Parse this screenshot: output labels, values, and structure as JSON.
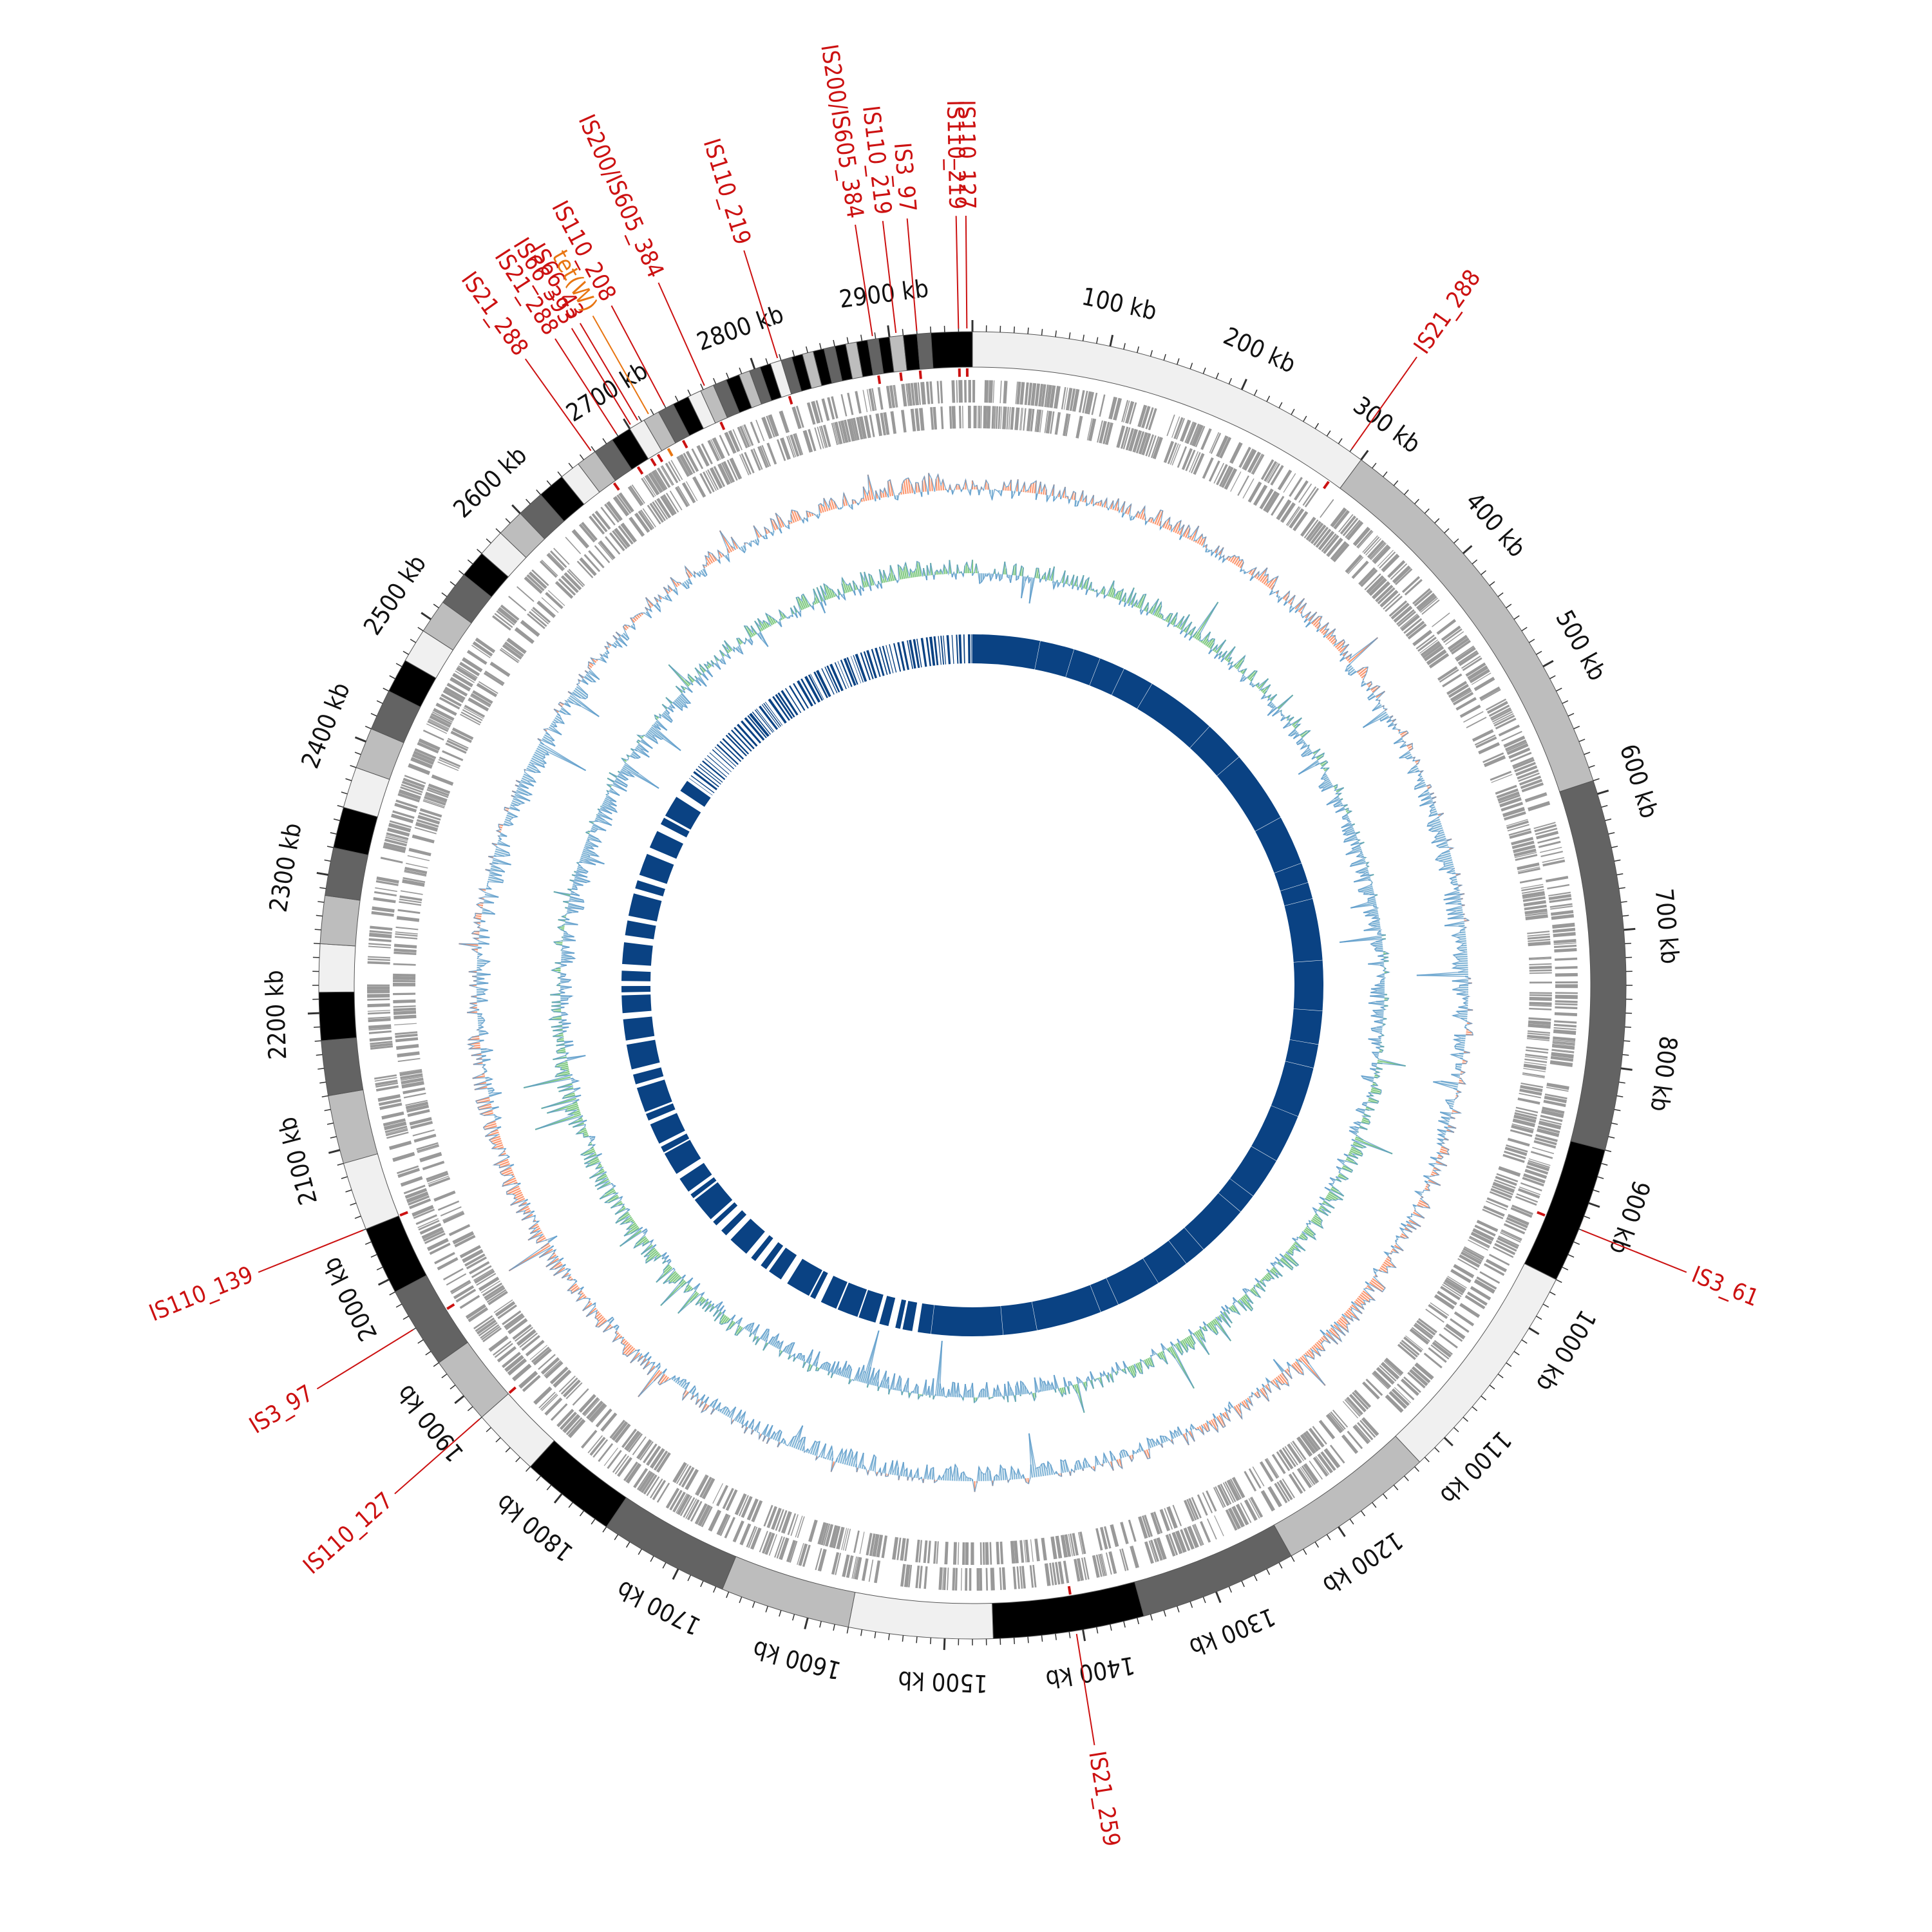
{
  "genome": {
    "length_kb": 2960,
    "tick_step_kb": 100,
    "tick_labels": [
      "100 kb",
      "200 kb",
      "300 kb",
      "400 kb",
      "500 kb",
      "600 kb",
      "700 kb",
      "800 kb",
      "900 kb",
      "1000 kb",
      "1100 kb",
      "1200 kb",
      "1300 kb",
      "1400 kb",
      "1500 kb",
      "1600 kb",
      "1700 kb",
      "1800 kb",
      "1900 kb",
      "2000 kb",
      "2100 kb",
      "2200 kb",
      "2300 kb",
      "2400 kb",
      "2500 kb",
      "2600 kb",
      "2700 kb",
      "2800 kb",
      "2900 kb"
    ]
  },
  "contigs": [
    {
      "start": 0,
      "end": 300,
      "color": "#f0f0f0"
    },
    {
      "start": 300,
      "end": 590,
      "color": "#bdbdbd"
    },
    {
      "start": 590,
      "end": 860,
      "color": "#636363"
    },
    {
      "start": 860,
      "end": 960,
      "color": "#000000"
    },
    {
      "start": 960,
      "end": 1125,
      "color": "#f0f0f0"
    },
    {
      "start": 1125,
      "end": 1240,
      "color": "#bdbdbd"
    },
    {
      "start": 1240,
      "end": 1355,
      "color": "#636363"
    },
    {
      "start": 1355,
      "end": 1465,
      "color": "#000000"
    },
    {
      "start": 1465,
      "end": 1570,
      "color": "#f0f0f0"
    },
    {
      "start": 1570,
      "end": 1665,
      "color": "#bdbdbd"
    },
    {
      "start": 1665,
      "end": 1760,
      "color": "#636363"
    },
    {
      "start": 1760,
      "end": 1830,
      "color": "#000000"
    },
    {
      "start": 1830,
      "end": 1880,
      "color": "#f0f0f0"
    },
    {
      "start": 1880,
      "end": 1930,
      "color": "#bdbdbd"
    },
    {
      "start": 1930,
      "end": 1990,
      "color": "#636363"
    },
    {
      "start": 1990,
      "end": 2040,
      "color": "#000000"
    },
    {
      "start": 2040,
      "end": 2090,
      "color": "#f0f0f0"
    },
    {
      "start": 2090,
      "end": 2140,
      "color": "#bdbdbd"
    },
    {
      "start": 2140,
      "end": 2180,
      "color": "#636363"
    },
    {
      "start": 2180,
      "end": 2215,
      "color": "#000000"
    },
    {
      "start": 2215,
      "end": 2250,
      "color": "#f0f0f0"
    },
    {
      "start": 2250,
      "end": 2285,
      "color": "#bdbdbd"
    },
    {
      "start": 2285,
      "end": 2320,
      "color": "#636363"
    },
    {
      "start": 2320,
      "end": 2350,
      "color": "#000000"
    },
    {
      "start": 2350,
      "end": 2380,
      "color": "#f0f0f0"
    },
    {
      "start": 2380,
      "end": 2410,
      "color": "#bdbdbd"
    },
    {
      "start": 2410,
      "end": 2440,
      "color": "#636363"
    },
    {
      "start": 2440,
      "end": 2465,
      "color": "#000000"
    },
    {
      "start": 2465,
      "end": 2490,
      "color": "#f0f0f0"
    },
    {
      "start": 2490,
      "end": 2515,
      "color": "#bdbdbd"
    },
    {
      "start": 2515,
      "end": 2540,
      "color": "#636363"
    },
    {
      "start": 2540,
      "end": 2560,
      "color": "#000000"
    },
    {
      "start": 2560,
      "end": 2580,
      "color": "#f0f0f0"
    },
    {
      "start": 2580,
      "end": 2600,
      "color": "#bdbdbd"
    },
    {
      "start": 2600,
      "end": 2620,
      "color": "#636363"
    },
    {
      "start": 2620,
      "end": 2640,
      "color": "#000000"
    },
    {
      "start": 2640,
      "end": 2655,
      "color": "#f0f0f0"
    },
    {
      "start": 2655,
      "end": 2670,
      "color": "#bdbdbd"
    },
    {
      "start": 2670,
      "end": 2685,
      "color": "#636363"
    },
    {
      "start": 2685,
      "end": 2700,
      "color": "#000000"
    },
    {
      "start": 2700,
      "end": 2712,
      "color": "#f0f0f0"
    },
    {
      "start": 2712,
      "end": 2724,
      "color": "#bdbdbd"
    },
    {
      "start": 2724,
      "end": 2736,
      "color": "#636363"
    },
    {
      "start": 2736,
      "end": 2748,
      "color": "#000000"
    },
    {
      "start": 2748,
      "end": 2758,
      "color": "#f0f0f0"
    },
    {
      "start": 2758,
      "end": 2768,
      "color": "#bdbdbd"
    },
    {
      "start": 2768,
      "end": 2778,
      "color": "#636363"
    },
    {
      "start": 2778,
      "end": 2788,
      "color": "#000000"
    },
    {
      "start": 2788,
      "end": 2796,
      "color": "#bdbdbd"
    },
    {
      "start": 2796,
      "end": 2804,
      "color": "#636363"
    },
    {
      "start": 2804,
      "end": 2812,
      "color": "#000000"
    },
    {
      "start": 2812,
      "end": 2820,
      "color": "#f0f0f0"
    },
    {
      "start": 2820,
      "end": 2828,
      "color": "#636363"
    },
    {
      "start": 2828,
      "end": 2836,
      "color": "#000000"
    },
    {
      "start": 2836,
      "end": 2844,
      "color": "#bdbdbd"
    },
    {
      "start": 2844,
      "end": 2852,
      "color": "#000000"
    },
    {
      "start": 2852,
      "end": 2860,
      "color": "#636363"
    },
    {
      "start": 2860,
      "end": 2868,
      "color": "#000000"
    },
    {
      "start": 2868,
      "end": 2876,
      "color": "#bdbdbd"
    },
    {
      "start": 2876,
      "end": 2884,
      "color": "#000000"
    },
    {
      "start": 2884,
      "end": 2892,
      "color": "#636363"
    },
    {
      "start": 2892,
      "end": 2900,
      "color": "#000000"
    },
    {
      "start": 2900,
      "end": 2910,
      "color": "#bdbdbd"
    },
    {
      "start": 2910,
      "end": 2920,
      "color": "#000000"
    },
    {
      "start": 2920,
      "end": 2930,
      "color": "#636363"
    },
    {
      "start": 2930,
      "end": 2960,
      "color": "#000000"
    }
  ],
  "features": [
    {
      "name": "IS21_288",
      "kb": 290,
      "color": "#cc1111"
    },
    {
      "name": "IS3_61",
      "kb": 920,
      "color": "#cc1111"
    },
    {
      "name": "IS21_259",
      "kb": 1405,
      "color": "#cc1111"
    },
    {
      "name": "IS110_127",
      "kb": 1880,
      "color": "#cc1111"
    },
    {
      "name": "IS3_97",
      "kb": 1960,
      "color": "#cc1111"
    },
    {
      "name": "IS110_139",
      "kb": 2040,
      "color": "#cc1111"
    },
    {
      "name": "IS21_288",
      "kb": 2668,
      "color": "#cc1111"
    },
    {
      "name": "IS21_288",
      "kb": 2690,
      "color": "#cc1111"
    },
    {
      "name": "IS66_393",
      "kb": 2702,
      "color": "#cc1111"
    },
    {
      "name": "IS66_43",
      "kb": 2708,
      "color": "#cc1111"
    },
    {
      "name": "tet(W)",
      "kb": 2717,
      "color": "#e87511"
    },
    {
      "name": "IS110_208",
      "kb": 2730,
      "color": "#cc1111"
    },
    {
      "name": "IS200/IS605_384",
      "kb": 2762,
      "color": "#cc1111"
    },
    {
      "name": "IS110_219",
      "kb": 2818,
      "color": "#cc1111"
    },
    {
      "name": "IS200/IS605_384",
      "kb": 2888,
      "color": "#cc1111"
    },
    {
      "name": "IS110_219",
      "kb": 2905,
      "color": "#cc1111"
    },
    {
      "name": "IS3_97",
      "kb": 2920,
      "color": "#cc1111"
    },
    {
      "name": "IS110_219",
      "kb": 2950,
      "color": "#cc1111"
    },
    {
      "name": "IS110_127",
      "kb": 2956,
      "color": "#cc1111"
    }
  ],
  "tracks": {
    "gene_color": "#999999",
    "gc_content": {
      "high": "#fc8d62",
      "low": "#74add1"
    },
    "gc_skew": {
      "positive": "#74c476",
      "negative": "#74add1"
    },
    "blast_hits": {
      "color": "#0a4283"
    }
  },
  "colors": {
    "feature": "#cc1111",
    "resistance": "#e87511",
    "axis": "#111111"
  }
}
